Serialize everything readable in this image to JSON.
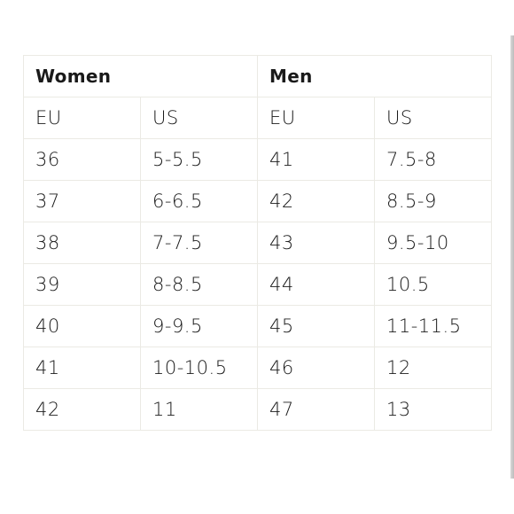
{
  "size_chart": {
    "groups": {
      "women": "Women",
      "men": "Men"
    },
    "columns": {
      "women_eu": "EU",
      "women_us": "US",
      "men_eu": "EU",
      "men_us": "US"
    },
    "rows": [
      {
        "women_eu": "36",
        "women_us": "5-5.5",
        "men_eu": "41",
        "men_us": "7.5-8"
      },
      {
        "women_eu": "37",
        "women_us": "6-6.5",
        "men_eu": "42",
        "men_us": "8.5-9"
      },
      {
        "women_eu": "38",
        "women_us": "7-7.5",
        "men_eu": "43",
        "men_us": "9.5-10"
      },
      {
        "women_eu": "39",
        "women_us": "8-8.5",
        "men_eu": "44",
        "men_us": "10.5"
      },
      {
        "women_eu": "40",
        "women_us": "9-9.5",
        "men_eu": "45",
        "men_us": "11-11.5"
      },
      {
        "women_eu": "41",
        "women_us": "10-10.5",
        "men_eu": "46",
        "men_us": "12"
      },
      {
        "women_eu": "42",
        "women_us": "11",
        "men_eu": "47",
        "men_us": "13"
      }
    ]
  }
}
